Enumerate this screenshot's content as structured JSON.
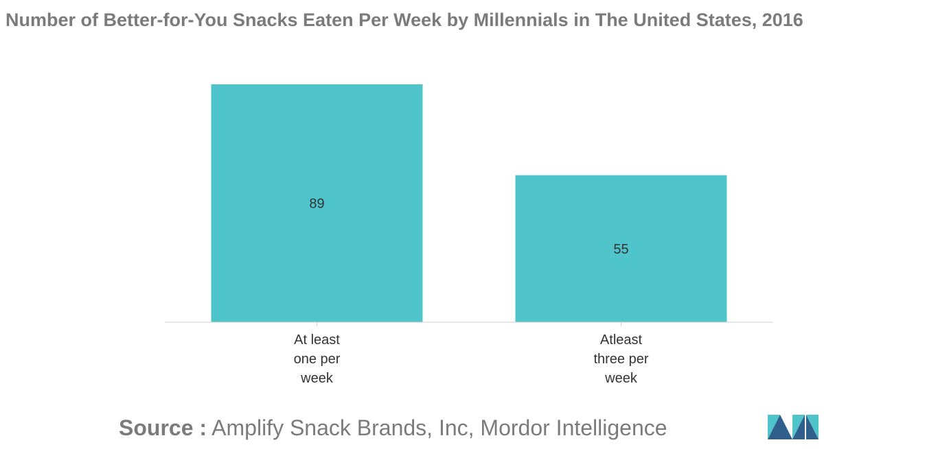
{
  "title": "Number of Better-for-You Snacks Eaten Per Week by Millennials in The United States, 2016",
  "source": {
    "label": "Source :",
    "text": "Amplify Snack Brands, Inc, Mordor Intelligence"
  },
  "colors": {
    "bar": "#4fc4cb",
    "title": "#7b7b7b",
    "axis": "#d0d0d0",
    "label": "#333333",
    "logo_dark": "#2f5f8a",
    "logo_light": "#4fc4cb"
  },
  "chart_data": {
    "type": "bar",
    "categories": [
      [
        "At least",
        "one per",
        "week"
      ],
      [
        "Atleast",
        "three per",
        "week"
      ]
    ],
    "values": [
      89,
      55
    ],
    "data_labels": [
      "89",
      "55"
    ],
    "ylim": [
      0,
      89
    ],
    "grid": false,
    "legend": "none"
  },
  "logo": {
    "name": "mordor-intelligence-logo-icon"
  }
}
